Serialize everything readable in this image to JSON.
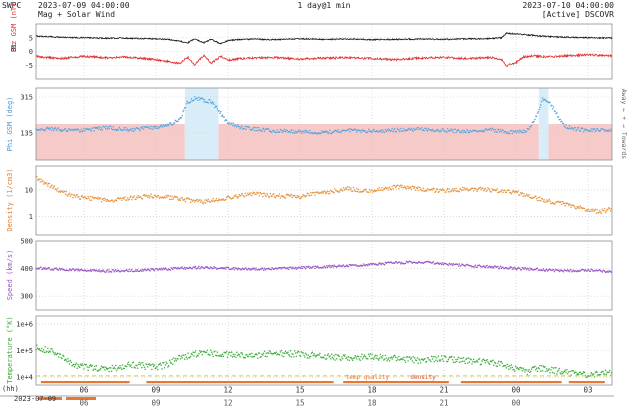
{
  "header": {
    "agency": "SWPC",
    "start_time": "2023-07-09 04:00:00",
    "subtitle": "Mag + Solar Wind",
    "cadence": "1 day@1 min",
    "end_time": "2023-07-10 04:00:00",
    "source": "[Active] DSCOVR"
  },
  "axis_labels": {
    "mag_bt": "Bt",
    "mag_bz": "Bz GSM (nT)",
    "phi": "Phi GSM (deg)",
    "density": "Density (1/cm3)",
    "speed": "Speed (km/s)",
    "temperature": "Temperature (°K)",
    "away_towards": "Away ← + → Towards"
  },
  "quality_labels": {
    "temp": "temp quality",
    "density": "density"
  },
  "footer": {
    "hh_label": "(hh)",
    "date_label": "2023-07-09",
    "next_hour_ticks": [
      "06",
      "09",
      "12",
      "15",
      "18",
      "21",
      "00"
    ]
  },
  "x_axis": {
    "range_hours": [
      0,
      24
    ],
    "hours": [
      2,
      5,
      8,
      11,
      14,
      17,
      20,
      23
    ],
    "labels": [
      "06",
      "09",
      "12",
      "15",
      "18",
      "21",
      "00",
      "03"
    ]
  },
  "colors": {
    "bt": "#141414",
    "bz": "#e03030",
    "phi": "#58a5dc",
    "phi_towards_band": "#f7caca",
    "phi_away_band": "#d9edf9",
    "density": "#e59440",
    "speed": "#9b59c8",
    "temperature": "#3fae3f",
    "quality_line": "#d9cb30",
    "quality_bar": "#e87830",
    "grid": "#c8c8c8",
    "border": "#909090"
  },
  "chart_data": [
    {
      "id": "mag",
      "type": "line",
      "scale": "linear",
      "title": "Bt Bz GSM (nT)",
      "ylim": [
        -10,
        10
      ],
      "yticks": [
        5,
        0,
        -5
      ],
      "series": [
        {
          "name": "Bt",
          "color": "#141414",
          "mode": "line",
          "spread": 0.22,
          "x": [
            0,
            0.5,
            1,
            1.5,
            2,
            2.5,
            3,
            3.5,
            4,
            4.5,
            5,
            5.5,
            6,
            6.3,
            6.6,
            7,
            7.3,
            7.7,
            8,
            8.5,
            9,
            10,
            11,
            12,
            13,
            14,
            15,
            16,
            17,
            18,
            19,
            19.4,
            19.6,
            20,
            20.3,
            20.7,
            21,
            21.5,
            22,
            23,
            24
          ],
          "values": [
            5.6,
            5.4,
            5.2,
            5.1,
            5.0,
            4.9,
            4.8,
            4.9,
            4.8,
            4.7,
            4.6,
            4.4,
            3.8,
            3.0,
            4.6,
            3.2,
            4.4,
            2.8,
            4.0,
            4.4,
            4.5,
            4.3,
            4.6,
            4.4,
            4.5,
            4.3,
            4.4,
            4.5,
            4.4,
            4.6,
            4.7,
            5.0,
            6.6,
            6.4,
            6.2,
            5.9,
            5.6,
            5.4,
            5.2,
            5.0,
            4.9
          ]
        },
        {
          "name": "Bz",
          "color": "#e03030",
          "mode": "line",
          "spread": 0.38,
          "x": [
            0,
            0.5,
            1,
            1.5,
            2,
            2.5,
            3,
            3.5,
            4,
            4.5,
            5,
            5.5,
            6,
            6.3,
            6.6,
            7,
            7.3,
            7.7,
            8,
            8.5,
            9,
            10,
            11,
            12,
            13,
            14,
            15,
            16,
            17,
            18,
            19,
            19.4,
            19.6,
            20,
            20.3,
            20.7,
            21,
            21.5,
            22,
            23,
            24
          ],
          "values": [
            -1.8,
            -2.2,
            -2.6,
            -2.2,
            -1.8,
            -2.0,
            -2.4,
            -2.0,
            -2.2,
            -2.6,
            -3.0,
            -3.6,
            -4.4,
            -2.0,
            -4.8,
            -1.4,
            -4.2,
            -1.8,
            -3.2,
            -2.6,
            -2.4,
            -2.2,
            -2.8,
            -2.4,
            -2.2,
            -2.6,
            -3.0,
            -2.4,
            -2.2,
            -2.6,
            -2.2,
            -3.0,
            -5.2,
            -4.0,
            -2.0,
            -1.6,
            -1.8,
            -2.0,
            -1.6,
            -1.2,
            -1.6
          ]
        }
      ]
    },
    {
      "id": "phi",
      "type": "scatter",
      "scale": "linear",
      "title": "Phi GSM (deg)",
      "ylim": [
        0,
        360
      ],
      "yticks": [
        315,
        135
      ],
      "bands": {
        "towards_range_deg": [
          0,
          180
        ],
        "towards_color": "#f7caca",
        "away_intervals_hours": [
          [
            6.2,
            7.6
          ],
          [
            20.95,
            21.35
          ]
        ],
        "away_color": "#d9edf9"
      },
      "series": [
        {
          "name": "Phi",
          "color": "#58a5dc",
          "mode": "dots",
          "spread": 9,
          "x": [
            0,
            0.5,
            1,
            1.5,
            2,
            2.5,
            3,
            3.5,
            4,
            4.5,
            5,
            5.5,
            6,
            6.3,
            6.6,
            7,
            7.3,
            7.6,
            8,
            8.5,
            9,
            9.5,
            10,
            11,
            12,
            13,
            14,
            15,
            16,
            17,
            18,
            19,
            19.5,
            20,
            20.5,
            20.9,
            21.1,
            21.4,
            21.8,
            22,
            22.5,
            23,
            23.5,
            24
          ],
          "values": [
            150,
            158,
            152,
            146,
            150,
            156,
            162,
            155,
            150,
            158,
            165,
            175,
            200,
            285,
            310,
            300,
            290,
            250,
            185,
            165,
            158,
            150,
            146,
            142,
            138,
            148,
            144,
            150,
            155,
            148,
            144,
            150,
            142,
            138,
            150,
            230,
            305,
            290,
            210,
            170,
            155,
            148,
            152,
            146
          ]
        }
      ]
    },
    {
      "id": "density",
      "type": "scatter",
      "scale": "log",
      "title": "Density (1/cm3)",
      "ylim": [
        0.2,
        80
      ],
      "yticks": [
        10,
        1
      ],
      "series": [
        {
          "name": "Density",
          "color": "#e59440",
          "mode": "dots",
          "spread": 0.08,
          "x": [
            0,
            0.3,
            0.6,
            1,
            1.5,
            2,
            2.5,
            3,
            3.5,
            4,
            5,
            6,
            7,
            8,
            9,
            10,
            11,
            12,
            13,
            14,
            15,
            16,
            17,
            18,
            19,
            20,
            20.5,
            21,
            21.5,
            22,
            22.5,
            23,
            23.5,
            24
          ],
          "values": [
            28,
            20,
            14,
            9,
            6,
            5,
            4.5,
            4,
            4.5,
            5,
            6,
            4.5,
            3.5,
            5,
            7,
            6,
            5.5,
            8,
            11,
            9,
            13,
            11,
            9,
            11,
            10,
            8,
            6,
            4.5,
            3.5,
            3,
            2.2,
            1.8,
            1.5,
            2
          ]
        }
      ]
    },
    {
      "id": "speed",
      "type": "scatter",
      "scale": "linear",
      "title": "Speed (km/s)",
      "ylim": [
        250,
        500
      ],
      "yticks": [
        500,
        400,
        300
      ],
      "series": [
        {
          "name": "Speed",
          "color": "#9b59c8",
          "mode": "dots",
          "spread": 4.5,
          "x": [
            0,
            1,
            2,
            3,
            4,
            5,
            6,
            7,
            8,
            9,
            10,
            11,
            12,
            13,
            14,
            15,
            16,
            17,
            18,
            19,
            20,
            21,
            22,
            23,
            24
          ],
          "values": [
            402,
            398,
            394,
            391,
            393,
            396,
            401,
            405,
            401,
            398,
            400,
            403,
            406,
            411,
            415,
            421,
            424,
            418,
            411,
            406,
            401,
            396,
            391,
            394,
            389
          ]
        }
      ]
    },
    {
      "id": "temperature",
      "type": "scatter",
      "scale": "log",
      "title": "Temperature (°K)",
      "ylim": [
        5000,
        2000000
      ],
      "yticks": [
        1000000,
        100000,
        10000
      ],
      "ytick_labels": [
        "1e+6",
        "1e+5",
        "1e+4"
      ],
      "quality": {
        "line_value": 11000,
        "line_color": "#d9cb30",
        "bars_hours": [
          [
            0.2,
            3.9
          ],
          [
            4.6,
            12.4
          ],
          [
            12.8,
            17.2
          ],
          [
            17.7,
            21.9
          ],
          [
            22.2,
            23.7
          ]
        ],
        "bar_color": "#e87830"
      },
      "series": [
        {
          "name": "Temperature",
          "color": "#3fae3f",
          "mode": "dots",
          "spread": 0.12,
          "x": [
            0,
            0.3,
            0.7,
            1,
            1.3,
            1.7,
            2,
            2.5,
            3,
            3.5,
            4,
            4.5,
            5,
            5.5,
            6,
            6.5,
            7,
            8,
            9,
            10,
            11,
            12,
            13,
            14,
            15,
            16,
            17,
            18,
            19,
            19.5,
            20,
            20.5,
            21,
            21.5,
            22,
            22.5,
            23,
            23.5,
            24
          ],
          "values": [
            130000,
            115000,
            90000,
            60000,
            40000,
            28000,
            24000,
            21000,
            20000,
            24000,
            30000,
            26000,
            23000,
            30000,
            52000,
            70000,
            82000,
            72000,
            62000,
            80000,
            72000,
            60000,
            52000,
            58000,
            50000,
            42000,
            50000,
            42000,
            34000,
            28000,
            20000,
            16000,
            22000,
            18000,
            15000,
            13000,
            12000,
            14000,
            15000
          ]
        }
      ]
    }
  ]
}
